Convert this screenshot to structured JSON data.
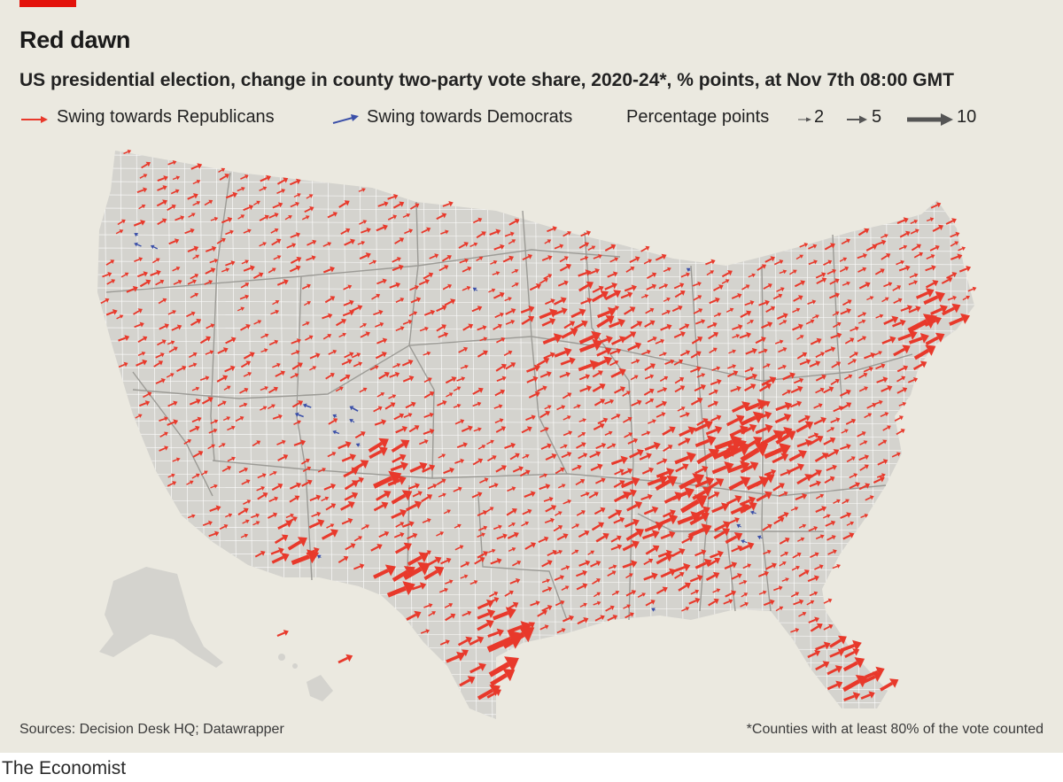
{
  "header": {
    "title": "Red dawn",
    "subtitle": "US presidential election, change in county two-party vote share, 2020-24*, % points, at Nov 7th 08:00 GMT"
  },
  "legend": {
    "republican_label": "Swing towards Republicans",
    "democrat_label": "Swing towards Democrats",
    "scale_label": "Percentage points",
    "scale_values": [
      "2",
      "5",
      "10"
    ]
  },
  "colors": {
    "republican": "#e8392b",
    "democrat": "#3a4fa8",
    "land": "#d4d3ce",
    "county_border": "#ffffff",
    "state_border": "#9c9b96",
    "background": "#ebe9e0",
    "brand_tag": "#e3120b"
  },
  "footer": {
    "source": "Sources: Decision Desk HQ; Datawrapper",
    "footnote": "*Counties with at least 80% of the vote counted",
    "brand": "The Economist"
  }
}
